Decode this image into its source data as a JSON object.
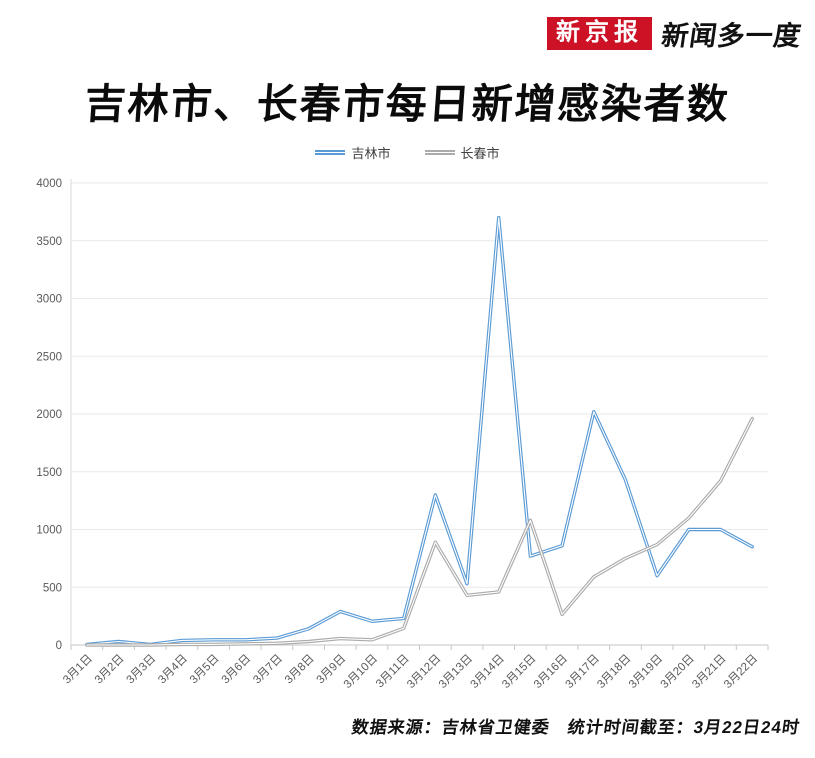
{
  "header": {
    "badge": "新京报",
    "badge_color": "#cd1225",
    "brand": "新闻多一度"
  },
  "title": "吉林市、长春市每日新增感染者数",
  "legend": [
    {
      "label": "吉林市",
      "color": "#5b9bd5"
    },
    {
      "label": "长春市",
      "color": "#ababab"
    }
  ],
  "footer": "数据来源：吉林省卫健委　统计时间截至：3月22日24时",
  "chart_data": {
    "type": "line",
    "title": "吉林市、长春市每日新增感染者数",
    "categories": [
      "3月1日",
      "3月2日",
      "3月3日",
      "3月4日",
      "3月5日",
      "3月6日",
      "3月7日",
      "3月8日",
      "3月9日",
      "3月10日",
      "3月11日",
      "3月12日",
      "3月13日",
      "3月14日",
      "3月15日",
      "3月16日",
      "3月17日",
      "3月18日",
      "3月19日",
      "3月20日",
      "3月21日",
      "3月22日"
    ],
    "series": [
      {
        "name": "吉林市",
        "color": "#5b9bd5",
        "values": [
          5,
          30,
          5,
          40,
          45,
          45,
          60,
          140,
          290,
          205,
          230,
          1300,
          530,
          3700,
          770,
          860,
          2020,
          1430,
          600,
          1000,
          1000,
          850
        ]
      },
      {
        "name": "长春市",
        "color": "#ababab",
        "values": [
          0,
          0,
          0,
          5,
          5,
          10,
          15,
          30,
          55,
          45,
          145,
          890,
          430,
          460,
          1080,
          265,
          590,
          750,
          870,
          1100,
          1420,
          1960
        ]
      }
    ],
    "xlabel": "",
    "ylabel": "",
    "ylim": [
      0,
      4000
    ],
    "ytick_step": 500,
    "yticks": [
      0,
      500,
      1000,
      1500,
      2000,
      2500,
      3000,
      3500,
      4000
    ],
    "grid": true,
    "legend_position": "top",
    "axis_label_color": "#595959",
    "gridline_color": "#e9e9e9",
    "axis_line_color": "#c6c6c6"
  }
}
